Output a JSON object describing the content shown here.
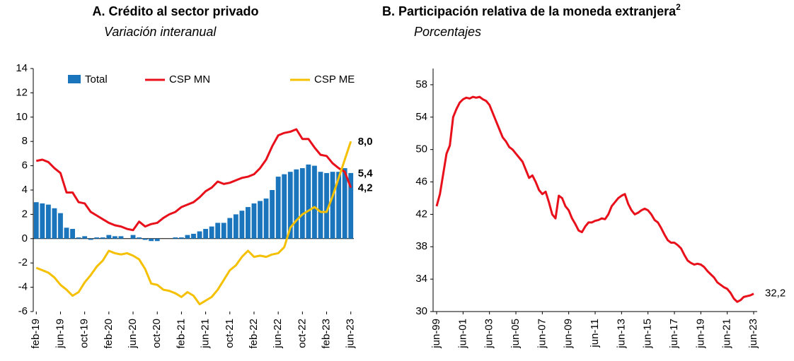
{
  "chart_data": [
    {
      "type": "bar_line",
      "title": "A. Crédito al sector privado",
      "subtitle": "Variación interanual",
      "categories": [
        "feb-19",
        null,
        null,
        null,
        "jun-19",
        null,
        null,
        null,
        "oct-19",
        null,
        null,
        null,
        "feb-20",
        null,
        null,
        null,
        "jun-20",
        null,
        null,
        null,
        "oct-20",
        null,
        null,
        null,
        "feb-21",
        null,
        null,
        null,
        "jun-21",
        null,
        null,
        null,
        "oct-21",
        null,
        null,
        null,
        "feb-22",
        null,
        null,
        null,
        "jun-22",
        null,
        null,
        null,
        "oct-22",
        null,
        null,
        null,
        "feb-23",
        null,
        null,
        null,
        "jun-23"
      ],
      "series": [
        {
          "name": "Total",
          "type": "bar",
          "color": "#1a75bc",
          "end_label": "5,4",
          "values": [
            3.0,
            2.9,
            2.8,
            2.5,
            2.1,
            0.9,
            0.8,
            0.1,
            0.2,
            -0.1,
            0.1,
            0.1,
            0.3,
            0.2,
            0.2,
            0.0,
            0.3,
            0.1,
            -0.1,
            -0.2,
            -0.2,
            0.0,
            0.0,
            0.1,
            0.1,
            0.3,
            0.4,
            0.6,
            0.8,
            1.0,
            1.3,
            1.3,
            1.7,
            2.0,
            2.3,
            2.6,
            2.9,
            3.1,
            3.3,
            4.0,
            5.1,
            5.3,
            5.5,
            5.7,
            5.8,
            6.1,
            6.0,
            5.5,
            5.4,
            5.5,
            5.5,
            5.8,
            5.4
          ]
        },
        {
          "name": "CSP MN",
          "type": "line",
          "color": "#e8101a",
          "end_label": "4,2",
          "values": [
            6.4,
            6.5,
            6.3,
            5.8,
            5.4,
            3.8,
            3.8,
            3.0,
            2.9,
            2.2,
            1.9,
            1.6,
            1.3,
            1.1,
            1.0,
            0.8,
            0.7,
            1.4,
            1.0,
            1.2,
            1.3,
            1.7,
            2.0,
            2.2,
            2.6,
            2.8,
            3.0,
            3.4,
            3.9,
            4.2,
            4.7,
            4.5,
            4.6,
            4.8,
            5.0,
            5.1,
            5.3,
            5.8,
            6.5,
            7.6,
            8.5,
            8.7,
            8.8,
            9.0,
            8.2,
            8.2,
            7.5,
            6.9,
            6.8,
            6.2,
            5.8,
            5.5,
            4.2
          ]
        },
        {
          "name": "CSP ME",
          "type": "line",
          "color": "#f5c000",
          "end_label": "8,0",
          "values": [
            -2.4,
            -2.6,
            -2.8,
            -3.2,
            -3.8,
            -4.2,
            -4.7,
            -4.4,
            -3.6,
            -3.0,
            -2.3,
            -1.8,
            -1.0,
            -1.2,
            -1.3,
            -1.2,
            -1.4,
            -1.7,
            -2.5,
            -3.7,
            -3.8,
            -4.2,
            -4.3,
            -4.5,
            -4.8,
            -4.4,
            -4.7,
            -5.4,
            -5.1,
            -4.8,
            -4.2,
            -3.4,
            -2.6,
            -2.2,
            -1.5,
            -1.0,
            -1.5,
            -1.4,
            -1.5,
            -1.3,
            -1.2,
            -0.7,
            0.9,
            1.5,
            2.0,
            2.3,
            2.6,
            2.2,
            2.2,
            3.5,
            5.0,
            6.5,
            8.0
          ]
        }
      ],
      "ylim": [
        -6,
        14
      ],
      "yticks": [
        -6,
        -4,
        -2,
        0,
        2,
        4,
        6,
        8,
        10,
        12,
        14
      ]
    },
    {
      "type": "line",
      "title": "B. Participación relativa de la moneda extranjera",
      "title_superscript": "2",
      "subtitle": "Porcentajes",
      "categories": [
        "jun-99",
        null,
        null,
        null,
        null,
        null,
        null,
        null,
        "jun-01",
        null,
        null,
        null,
        null,
        null,
        null,
        null,
        "jun-03",
        null,
        null,
        null,
        null,
        null,
        null,
        null,
        "jun-05",
        null,
        null,
        null,
        null,
        null,
        null,
        null,
        "jun-07",
        null,
        null,
        null,
        null,
        null,
        null,
        null,
        "jun-09",
        null,
        null,
        null,
        null,
        null,
        null,
        null,
        "jun-11",
        null,
        null,
        null,
        null,
        null,
        null,
        null,
        "jun-13",
        null,
        null,
        null,
        null,
        null,
        null,
        null,
        "jun-15",
        null,
        null,
        null,
        null,
        null,
        null,
        null,
        "jun-17",
        null,
        null,
        null,
        null,
        null,
        null,
        null,
        "jun-19",
        null,
        null,
        null,
        null,
        null,
        null,
        null,
        "jun-21",
        null,
        null,
        null,
        null,
        null,
        null,
        null,
        "jun-23"
      ],
      "color": "#e8101a",
      "end_label": "32,2",
      "values": [
        43,
        44.5,
        47,
        49.5,
        50.5,
        54,
        55,
        55.8,
        56.2,
        56.4,
        56.3,
        56.5,
        56.4,
        56.5,
        56.2,
        56,
        55.5,
        54.5,
        53.5,
        52.5,
        51.5,
        51,
        50.3,
        50,
        49.5,
        49,
        48.5,
        47.5,
        46.5,
        46.8,
        46,
        45,
        44.5,
        44.8,
        43.5,
        42,
        41.5,
        44.3,
        44,
        43,
        42.5,
        41.5,
        40.8,
        40,
        39.8,
        40.5,
        41,
        41,
        41.2,
        41.3,
        41.5,
        41.4,
        42,
        43,
        43.5,
        44,
        44.3,
        44.5,
        43.3,
        42.5,
        42,
        42.2,
        42.5,
        42.7,
        42.5,
        42,
        41.3,
        41,
        40.3,
        39.5,
        38.8,
        38.5,
        38.5,
        38.2,
        37.8,
        37,
        36.3,
        36,
        35.8,
        35.9,
        35.8,
        35.5,
        35,
        34.6,
        34.2,
        33.6,
        33.3,
        33,
        32.8,
        32.3,
        31.6,
        31.2,
        31.4,
        31.8,
        31.9,
        32,
        32.2
      ],
      "ylim": [
        30,
        60
      ],
      "yticks": [
        30,
        34,
        38,
        42,
        46,
        50,
        54,
        58
      ]
    }
  ]
}
